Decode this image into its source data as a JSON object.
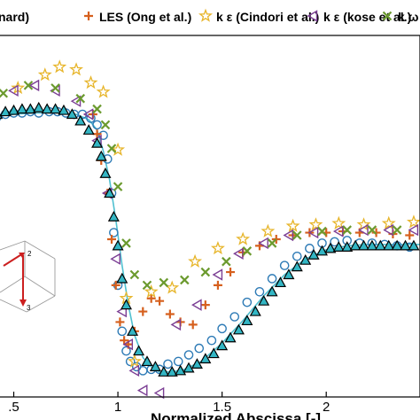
{
  "chart_data": {
    "type": "scatter",
    "title": "",
    "xlabel": "Normalized Abscissa [-]",
    "ylabel": "",
    "xlim": [
      0.4,
      2.45
    ],
    "ylim": [
      -1.75,
      1.0
    ],
    "x_ticks": [
      0.5,
      1,
      1.5,
      2
    ],
    "x_tick_labels": [
      ".5",
      "1",
      "1.5",
      "2"
    ],
    "grid": false,
    "legend_position": "top",
    "legend": [
      {
        "label": "nard)",
        "series": "exp"
      },
      {
        "label": "LES (Ong et al.)",
        "series": "les"
      },
      {
        "label": "k ε (Cindori et al.)",
        "series": "cindori"
      },
      {
        "label": "k ε (kose et al.)",
        "series": "kose_ke"
      },
      {
        "label": "k ω (Kose",
        "series": "kose_kw"
      }
    ],
    "colors": {
      "exp": "#2e7bb6",
      "les": "#d6601e",
      "cindori": "#e7b52a",
      "kose_ke": "#7b3e94",
      "kose_kw": "#6b9a2e",
      "triangles": "#33b6c4",
      "curve": "#4fc0d0",
      "inset_arrow": "#cc1f1f"
    },
    "series": [
      {
        "id": "exp",
        "marker": "circle",
        "x": [
          0.42,
          0.46,
          0.5,
          0.54,
          0.58,
          0.62,
          0.67,
          0.71,
          0.75,
          0.79,
          0.83,
          0.87,
          0.9,
          0.93,
          0.95,
          0.97,
          0.98,
          1.0,
          1.02,
          1.04,
          1.06,
          1.09,
          1.12,
          1.16,
          1.2,
          1.24,
          1.29,
          1.34,
          1.39,
          1.45,
          1.5,
          1.56,
          1.62,
          1.68,
          1.74,
          1.8,
          1.86,
          1.92,
          1.98,
          2.04,
          2.1,
          2.16,
          2.22,
          2.28,
          2.34,
          2.4
        ],
        "y": [
          0.38,
          0.4,
          0.41,
          0.41,
          0.42,
          0.41,
          0.42,
          0.42,
          0.41,
          0.4,
          0.4,
          0.37,
          0.32,
          0.24,
          0.06,
          -0.2,
          -0.5,
          -0.9,
          -1.25,
          -1.4,
          -1.48,
          -1.52,
          -1.55,
          -1.54,
          -1.54,
          -1.5,
          -1.48,
          -1.43,
          -1.38,
          -1.32,
          -1.23,
          -1.14,
          -1.03,
          -0.95,
          -0.85,
          -0.75,
          -0.68,
          -0.62,
          -0.58,
          -0.57,
          -0.56,
          -0.58,
          -0.58,
          -0.59,
          -0.6,
          -0.61
        ]
      },
      {
        "id": "les",
        "marker": "plus",
        "x": [
          0.41,
          0.88,
          0.9,
          0.92,
          0.95,
          0.97,
          0.99,
          1.01,
          1.03,
          1.05,
          1.08,
          1.12,
          1.16,
          1.2,
          1.25,
          1.3,
          1.36,
          1.42,
          1.48,
          1.54,
          1.6,
          1.68,
          1.76,
          1.84,
          1.92,
          2.0,
          2.08,
          2.16,
          2.24,
          2.32,
          2.4
        ],
        "y": [
          0.48,
          0.4,
          0.25,
          0.05,
          -0.2,
          -0.55,
          -0.9,
          -1.18,
          -1.32,
          -1.35,
          -1.25,
          -1.1,
          -1.0,
          -1.02,
          -1.12,
          -1.18,
          -1.2,
          -1.05,
          -0.9,
          -0.8,
          -0.65,
          -0.6,
          -0.55,
          -0.52,
          -0.5,
          -0.5,
          -0.49,
          -0.5,
          -0.5,
          -0.51,
          -0.52
        ]
      },
      {
        "id": "cindori",
        "marker": "star",
        "x": [
          0.52,
          0.65,
          0.72,
          0.8,
          0.87,
          0.93,
          1.0,
          1.04,
          1.08,
          1.16,
          1.26,
          1.37,
          1.48,
          1.6,
          1.72,
          1.84,
          1.95,
          2.06,
          2.18,
          2.3,
          2.42
        ],
        "y": [
          0.6,
          0.7,
          0.76,
          0.74,
          0.64,
          0.57,
          0.13,
          -1.0,
          -1.48,
          -0.95,
          -0.92,
          -0.72,
          -0.62,
          -0.55,
          -0.49,
          -0.45,
          -0.44,
          -0.43,
          -0.44,
          -0.43,
          -0.42
        ],
        "label_points": [
          {
            "x": 0.72,
            "y": 0.76
          },
          {
            "x": 0.8,
            "y": 0.74
          }
        ]
      },
      {
        "id": "kose_ke",
        "marker": "triangle-left",
        "x": [
          0.41,
          0.5,
          0.6,
          0.7,
          0.8,
          0.86,
          0.9,
          0.95,
          0.99,
          1.02,
          1.05,
          1.08,
          1.12,
          1.2,
          1.28,
          1.38,
          1.48,
          1.58,
          1.7,
          1.82,
          1.94,
          2.06,
          2.18,
          2.3,
          2.42
        ],
        "y": [
          0.52,
          0.58,
          0.62,
          0.58,
          0.5,
          0.4,
          0.2,
          -0.2,
          -0.7,
          -1.1,
          -1.35,
          -1.55,
          -1.7,
          -1.72,
          -1.2,
          -1.05,
          -0.82,
          -0.66,
          -0.58,
          -0.52,
          -0.5,
          -0.49,
          -0.48,
          -0.48,
          -0.48
        ]
      },
      {
        "id": "kose_kw",
        "marker": "x",
        "x": [
          0.45,
          0.57,
          0.7,
          0.82,
          0.9,
          0.94,
          0.97,
          1.0,
          1.04,
          1.08,
          1.14,
          1.22,
          1.32,
          1.42,
          1.52,
          1.62,
          1.74,
          1.86,
          1.98,
          2.1,
          2.22,
          2.34
        ],
        "y": [
          0.56,
          0.62,
          0.6,
          0.52,
          0.44,
          0.32,
          0.14,
          -0.15,
          -0.58,
          -0.82,
          -0.9,
          -0.88,
          -0.86,
          -0.8,
          -0.72,
          -0.64,
          -0.58,
          -0.52,
          -0.49,
          -0.48,
          -0.48,
          -0.48
        ]
      },
      {
        "id": "triangles",
        "marker": "triangle-up",
        "x": [
          0.42,
          0.46,
          0.5,
          0.54,
          0.58,
          0.62,
          0.66,
          0.7,
          0.74,
          0.78,
          0.82,
          0.86,
          0.9,
          0.92,
          0.94,
          0.96,
          0.98,
          1.0,
          1.02,
          1.04,
          1.07,
          1.1,
          1.14,
          1.18,
          1.22,
          1.26,
          1.3,
          1.34,
          1.38,
          1.42,
          1.46,
          1.5,
          1.54,
          1.58,
          1.62,
          1.66,
          1.7,
          1.74,
          1.78,
          1.82,
          1.86,
          1.9,
          1.94,
          1.98,
          2.02,
          2.06,
          2.1,
          2.14,
          2.18,
          2.22,
          2.26,
          2.3,
          2.34,
          2.38,
          2.42
        ],
        "y": [
          0.4,
          0.42,
          0.43,
          0.44,
          0.44,
          0.45,
          0.44,
          0.44,
          0.43,
          0.4,
          0.35,
          0.28,
          0.18,
          0.08,
          -0.05,
          -0.2,
          -0.38,
          -0.6,
          -0.85,
          -1.05,
          -1.25,
          -1.4,
          -1.48,
          -1.52,
          -1.56,
          -1.56,
          -1.55,
          -1.53,
          -1.5,
          -1.46,
          -1.42,
          -1.36,
          -1.3,
          -1.24,
          -1.17,
          -1.1,
          -1.02,
          -0.95,
          -0.88,
          -0.82,
          -0.76,
          -0.71,
          -0.67,
          -0.64,
          -0.62,
          -0.61,
          -0.61,
          -0.6,
          -0.6,
          -0.6,
          -0.6,
          -0.6,
          -0.6,
          -0.6,
          -0.6
        ]
      },
      {
        "id": "curve",
        "marker": "line",
        "x": [
          0.4,
          0.5,
          0.6,
          0.7,
          0.8,
          0.86,
          0.9,
          0.93,
          0.96,
          0.99,
          1.02,
          1.05,
          1.08,
          1.12,
          1.16,
          1.2,
          1.26,
          1.32,
          1.4,
          1.5,
          1.6,
          1.7,
          1.8,
          1.9,
          2.0,
          2.1,
          2.2,
          2.3,
          2.4,
          2.45
        ],
        "y": [
          0.38,
          0.4,
          0.41,
          0.41,
          0.4,
          0.36,
          0.28,
          0.12,
          -0.1,
          -0.4,
          -0.75,
          -1.05,
          -1.28,
          -1.45,
          -1.52,
          -1.56,
          -1.56,
          -1.54,
          -1.48,
          -1.34,
          -1.17,
          -0.98,
          -0.82,
          -0.7,
          -0.63,
          -0.6,
          -0.59,
          -0.59,
          -0.59,
          -0.59
        ]
      }
    ],
    "inset": {
      "label_top": "2",
      "label_bottom": "3"
    }
  }
}
